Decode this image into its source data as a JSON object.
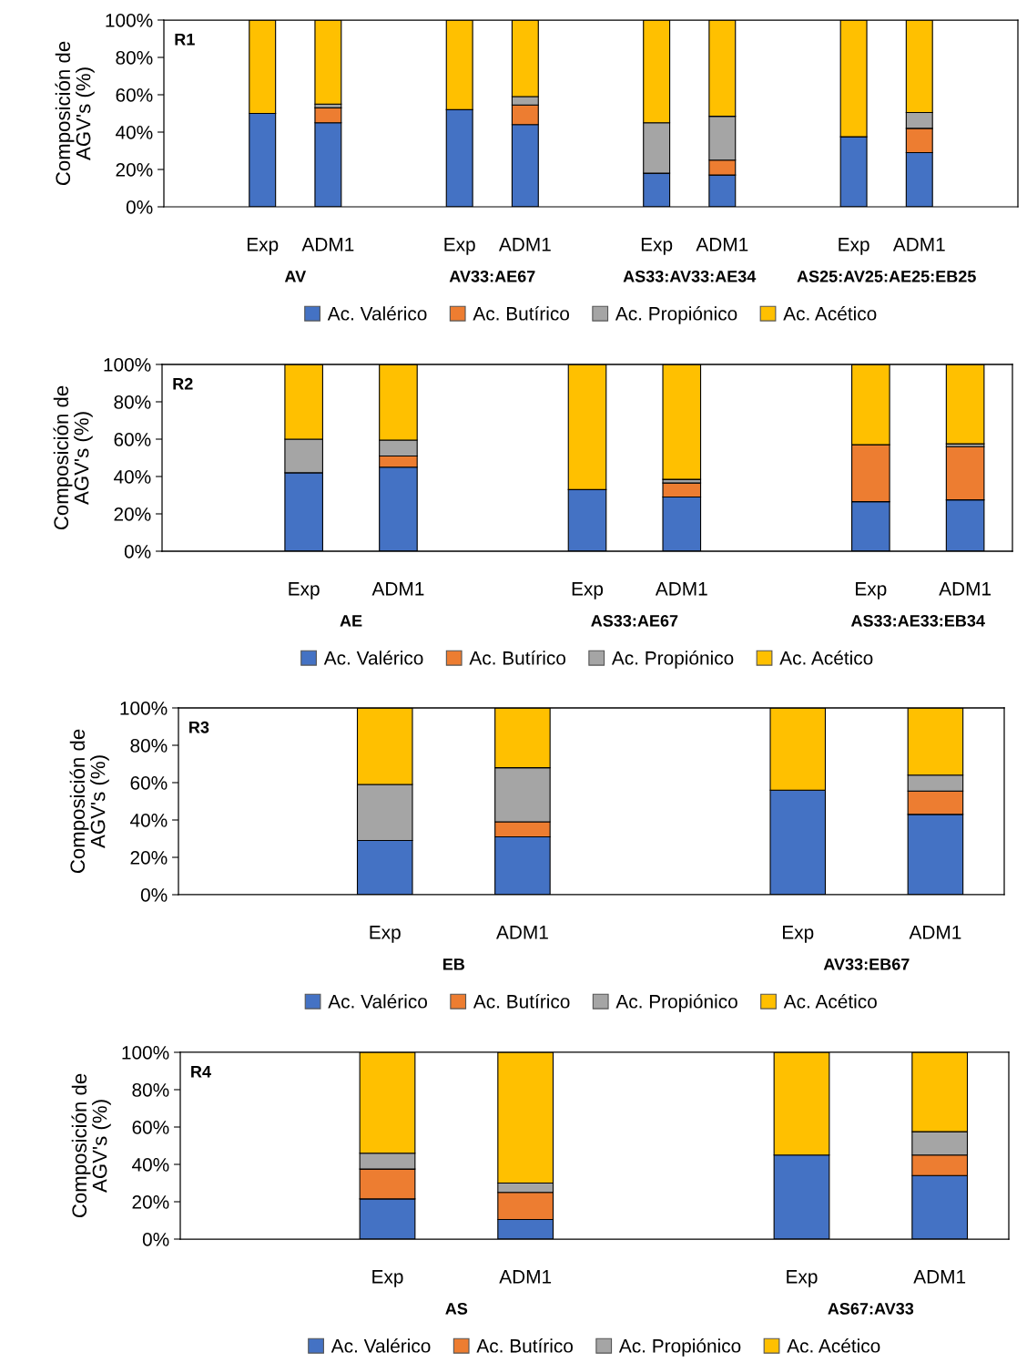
{
  "chart_data": [
    {
      "type": "bar",
      "stacked": true,
      "title": "R1",
      "ylabel": "Composición de\nAGV's (%)",
      "legend": "bottom",
      "grid": false,
      "categories": [
        null,
        "Exp",
        "ADM1",
        null,
        "Exp",
        "ADM1",
        null,
        "Exp",
        "ADM1",
        null,
        "Exp",
        "ADM1",
        null
      ],
      "annotations": [
        "AV",
        "AV33:AE67",
        "AS33:AV33:AE34",
        "AS25:AV25:AE25:EB25"
      ],
      "ylim": [
        0,
        100
      ],
      "yticks": [
        {
          "value": 0,
          "label": "0%"
        },
        {
          "value": 20,
          "label": "20%"
        },
        {
          "value": 40,
          "label": "40%"
        },
        {
          "value": 60,
          "label": "60%"
        },
        {
          "value": 80,
          "label": "80%"
        },
        {
          "value": 100,
          "label": "100%"
        }
      ],
      "series": [
        {
          "name": "Ac. Valérico",
          "color": "#4472c4",
          "values": [
            null,
            50,
            45,
            null,
            52,
            44,
            null,
            18,
            17,
            null,
            37.5,
            29,
            null
          ]
        },
        {
          "name": "Ac. Butírico",
          "color": "#ed7d31",
          "values": [
            null,
            null,
            8,
            null,
            null,
            10.5,
            null,
            null,
            8,
            null,
            null,
            13,
            null
          ]
        },
        {
          "name": "Ac. Propiónico",
          "color": "#a5a5a5",
          "values": [
            null,
            null,
            2,
            null,
            null,
            4.5,
            null,
            27,
            23.5,
            null,
            null,
            8.5,
            null
          ]
        },
        {
          "name": "Ac. Acético",
          "color": "#ffc000",
          "values": [
            null,
            50,
            45,
            null,
            48,
            41,
            null,
            55,
            51.5,
            null,
            62.5,
            49.5,
            null
          ]
        }
      ]
    },
    {
      "type": "bar",
      "stacked": true,
      "title": "R2",
      "ylabel": "Composición de\nAGV's (%)",
      "legend": "bottom",
      "grid": false,
      "categories": [
        null,
        "Exp",
        "ADM1",
        null,
        "Exp",
        "ADM1",
        null,
        "Exp",
        "ADM1"
      ],
      "annotations": [
        "AE",
        "AS33:AE67",
        "AS33:AE33:EB34"
      ],
      "ylim": [
        0,
        100
      ],
      "yticks": [
        {
          "value": 0,
          "label": "0%"
        },
        {
          "value": 20,
          "label": "20%"
        },
        {
          "value": 40,
          "label": "40%"
        },
        {
          "value": 60,
          "label": "60%"
        },
        {
          "value": 80,
          "label": "80%"
        },
        {
          "value": 100,
          "label": "100%"
        }
      ],
      "series": [
        {
          "name": "Ac. Valérico",
          "color": "#4472c4",
          "values": [
            null,
            42,
            45,
            null,
            33,
            29,
            null,
            26.5,
            27.5
          ]
        },
        {
          "name": "Ac. Butírico",
          "color": "#ed7d31",
          "values": [
            null,
            null,
            6,
            null,
            null,
            7.5,
            null,
            30.5,
            28.5
          ]
        },
        {
          "name": "Ac. Propiónico",
          "color": "#a5a5a5",
          "values": [
            null,
            18,
            8.5,
            null,
            null,
            2,
            null,
            null,
            1.5
          ]
        },
        {
          "name": "Ac. Acético",
          "color": "#ffc000",
          "values": [
            null,
            40,
            40.5,
            null,
            67,
            61.5,
            null,
            43,
            42.5
          ]
        }
      ]
    },
    {
      "type": "bar",
      "stacked": true,
      "title": "R3",
      "ylabel": "Composición de\nAGV's (%)",
      "legend": "bottom",
      "grid": false,
      "categories": [
        null,
        "Exp",
        "ADM1",
        null,
        "Exp",
        "ADM1"
      ],
      "annotations": [
        "EB",
        "AV33:EB67"
      ],
      "ylim": [
        0,
        100
      ],
      "yticks": [
        {
          "value": 0,
          "label": "0%"
        },
        {
          "value": 20,
          "label": "20%"
        },
        {
          "value": 40,
          "label": "40%"
        },
        {
          "value": 60,
          "label": "60%"
        },
        {
          "value": 80,
          "label": "80%"
        },
        {
          "value": 100,
          "label": "100%"
        }
      ],
      "series": [
        {
          "name": "Ac. Valérico",
          "color": "#4472c4",
          "values": [
            null,
            29,
            31,
            null,
            56,
            43
          ]
        },
        {
          "name": "Ac. Butírico",
          "color": "#ed7d31",
          "values": [
            null,
            null,
            8,
            null,
            null,
            12.5
          ]
        },
        {
          "name": "Ac. Propiónico",
          "color": "#a5a5a5",
          "values": [
            null,
            30,
            29,
            null,
            null,
            8.5
          ]
        },
        {
          "name": "Ac. Acético",
          "color": "#ffc000",
          "values": [
            null,
            41,
            32,
            null,
            44,
            36
          ]
        }
      ]
    },
    {
      "type": "bar",
      "stacked": true,
      "title": "R4",
      "ylabel": "Composición de\nAGV's (%)",
      "legend": "bottom",
      "grid": false,
      "categories": [
        null,
        "Exp",
        "ADM1",
        null,
        "Exp",
        "ADM1"
      ],
      "annotations": [
        "AS",
        "AS67:AV33"
      ],
      "ylim": [
        0,
        100
      ],
      "yticks": [
        {
          "value": 0,
          "label": "0%"
        },
        {
          "value": 20,
          "label": "20%"
        },
        {
          "value": 40,
          "label": "40%"
        },
        {
          "value": 60,
          "label": "60%"
        },
        {
          "value": 80,
          "label": "80%"
        },
        {
          "value": 100,
          "label": "100%"
        }
      ],
      "series": [
        {
          "name": "Ac. Valérico",
          "color": "#4472c4",
          "values": [
            null,
            21.5,
            10.5,
            null,
            45,
            34
          ]
        },
        {
          "name": "Ac. Butírico",
          "color": "#ed7d31",
          "values": [
            null,
            16,
            14.5,
            null,
            null,
            11
          ]
        },
        {
          "name": "Ac. Propiónico",
          "color": "#a5a5a5",
          "values": [
            null,
            8.5,
            5,
            null,
            null,
            12.5
          ]
        },
        {
          "name": "Ac. Acético",
          "color": "#ffc000",
          "values": [
            null,
            54,
            70,
            null,
            55,
            42.5
          ]
        }
      ]
    }
  ]
}
